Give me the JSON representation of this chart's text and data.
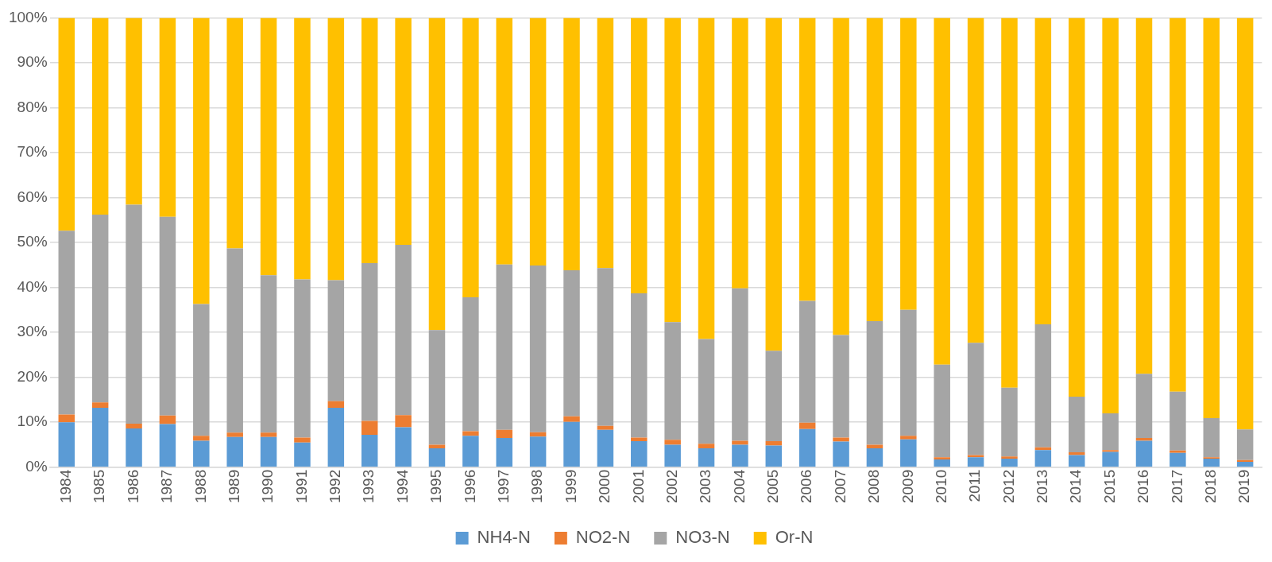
{
  "chart_data": {
    "type": "bar",
    "stacked": true,
    "categories": [
      "1984",
      "1985",
      "1986",
      "1987",
      "1988",
      "1989",
      "1990",
      "1991",
      "1992",
      "1993",
      "1994",
      "1995",
      "1996",
      "1997",
      "1998",
      "1999",
      "2000",
      "2001",
      "2002",
      "2003",
      "2004",
      "2005",
      "2006",
      "2007",
      "2008",
      "2009",
      "2010",
      "2011",
      "2012",
      "2013",
      "2014",
      "2015",
      "2016",
      "2017",
      "2018",
      "2019"
    ],
    "series": [
      {
        "name": "NH4-N",
        "color": "#5b9bd5",
        "values": [
          10.0,
          13.2,
          8.6,
          9.6,
          5.9,
          6.7,
          6.7,
          5.5,
          13.2,
          7.2,
          8.9,
          4.2,
          7.0,
          6.5,
          6.8,
          10.1,
          8.3,
          5.8,
          5.0,
          4.2,
          5.0,
          4.8,
          8.5,
          5.7,
          4.2,
          6.2,
          1.7,
          2.2,
          1.9,
          3.8,
          2.7,
          3.4,
          5.9,
          3.2,
          1.9,
          1.2
        ]
      },
      {
        "name": "NO2-N",
        "color": "#ed7d31",
        "values": [
          1.7,
          1.2,
          1.1,
          1.9,
          1.1,
          1.0,
          1.0,
          1.1,
          1.5,
          3.1,
          2.7,
          0.8,
          1.0,
          1.8,
          1.0,
          1.2,
          0.9,
          0.8,
          1.1,
          1.0,
          0.9,
          1.0,
          1.4,
          0.9,
          0.8,
          0.8,
          0.5,
          0.5,
          0.5,
          0.6,
          0.6,
          0.4,
          0.6,
          0.5,
          0.3,
          0.4
        ]
      },
      {
        "name": "NO3-N",
        "color": "#a5a5a5",
        "values": [
          40.9,
          41.8,
          48.7,
          44.2,
          29.3,
          41.0,
          35.0,
          35.2,
          26.9,
          35.1,
          37.9,
          25.5,
          29.8,
          36.8,
          37.1,
          32.5,
          35.1,
          32.1,
          26.2,
          23.3,
          33.9,
          20.1,
          27.1,
          22.8,
          27.5,
          28.0,
          20.6,
          25.0,
          15.3,
          27.4,
          12.4,
          8.2,
          14.3,
          13.1,
          8.7,
          6.8
        ]
      },
      {
        "name": "Or-N",
        "color": "#ffc000",
        "values": [
          47.4,
          43.8,
          41.6,
          44.3,
          63.7,
          51.3,
          57.3,
          58.2,
          58.4,
          54.6,
          50.5,
          69.5,
          62.2,
          54.9,
          55.1,
          56.2,
          55.7,
          61.3,
          67.7,
          71.5,
          60.2,
          74.1,
          63.0,
          70.6,
          67.5,
          65.0,
          77.2,
          72.3,
          82.3,
          68.2,
          84.3,
          88.0,
          79.2,
          83.2,
          89.1,
          91.6
        ]
      }
    ],
    "ylim": [
      0,
      100
    ],
    "yticks": [
      {
        "value": 0,
        "label": "0%"
      },
      {
        "value": 10,
        "label": "10%"
      },
      {
        "value": 20,
        "label": "20%"
      },
      {
        "value": 30,
        "label": "30%"
      },
      {
        "value": 40,
        "label": "40%"
      },
      {
        "value": 50,
        "label": "50%"
      },
      {
        "value": 60,
        "label": "60%"
      },
      {
        "value": 70,
        "label": "70%"
      },
      {
        "value": 80,
        "label": "80%"
      },
      {
        "value": 90,
        "label": "90%"
      },
      {
        "value": 100,
        "label": "100%"
      }
    ],
    "grid": "y",
    "legend": "bottom"
  }
}
